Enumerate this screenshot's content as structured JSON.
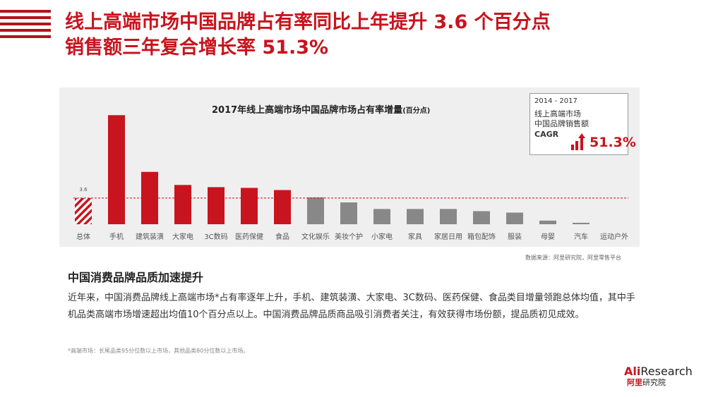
{
  "headline": {
    "line1": "线上高端市场中国品牌占有率同比上年提升 3.6 个百分点",
    "line2": "销售额三年复合增长率 51.3%"
  },
  "chart_data": {
    "type": "bar",
    "title": "2017年线上高端市场中国品牌市场占有率增量",
    "title_unit": "(百分点)",
    "categories": [
      "总体",
      "手机",
      "建筑装潢",
      "大家电",
      "3C数码",
      "医药保健",
      "食品",
      "文化娱乐",
      "美妆个护",
      "小家电",
      "家具",
      "家居日用",
      "箱包配饰",
      "服装",
      "母婴",
      "汽车",
      "运动户外"
    ],
    "values": [
      3.6,
      15.0,
      7.2,
      5.4,
      5.1,
      5.0,
      4.7,
      3.7,
      3.0,
      2.1,
      2.1,
      2.1,
      1.8,
      1.6,
      0.5,
      0.2,
      0.0
    ],
    "average_line": 3.6,
    "average_label": "3.6",
    "highlight_count": 6,
    "ylim": [
      0,
      16
    ],
    "grid": false,
    "colors": {
      "highlight": "#c8141e",
      "other": "#888888",
      "total_hatch": "#c8141e"
    }
  },
  "callout": {
    "period": "2014 - 2017",
    "line1": "线上高端市场",
    "line2": "中国品牌销售额",
    "label": "CAGR",
    "value": "51.3%"
  },
  "source": "数据来源：阿里研究院，阿里零售平台",
  "subhead": "中国消费品牌品质加速提升",
  "body": "近年来，中国消费品牌线上高端市场*占有率逐年上升，手机、建筑装潢、大家电、3C数码、医药保健、食品类目增量领跑总体均值，其中手机品类高端市场增速超出均值10个百分点以上。中国消费品牌品质商品吸引消费者关注，有效获得市场份额，提品质初见成效。",
  "footnote": "*高端市场：长尾品类95分位数以上市场，其他品类80分位数以上市场。",
  "logo": {
    "ali": "Ali",
    "research": "Research",
    "sub_red": "阿里",
    "sub_dark": "研究院"
  }
}
